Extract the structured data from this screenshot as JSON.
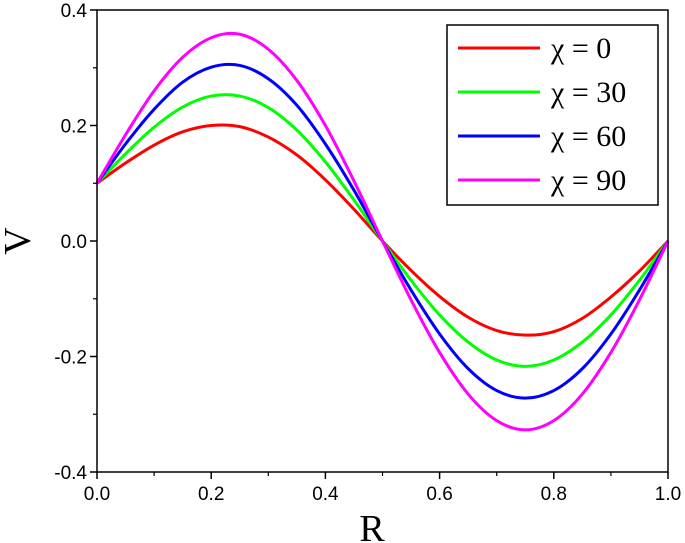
{
  "chart_data": {
    "type": "line",
    "title": "",
    "xlabel": "R",
    "ylabel": "V",
    "xlim": [
      0.0,
      1.0
    ],
    "ylim": [
      -0.4,
      0.4
    ],
    "xticks": [
      "0.0",
      "0.2",
      "0.4",
      "0.6",
      "0.8",
      "1.0"
    ],
    "yticks": [
      "-0.4",
      "-0.2",
      "0.0",
      "0.2",
      "0.4"
    ],
    "grid": false,
    "legend_position": "top-right",
    "x": [
      0,
      0.05,
      0.1,
      0.15,
      0.2,
      0.25,
      0.3,
      0.35,
      0.4,
      0.45,
      0.5,
      0.55,
      0.6,
      0.65,
      0.7,
      0.75,
      0.8,
      0.85,
      0.9,
      0.95,
      1.0
    ],
    "series": [
      {
        "name": "χ = 0",
        "color": "#ff0000",
        "values": [
          0.1,
          0.135,
          0.166,
          0.189,
          0.2,
          0.198,
          0.18,
          0.149,
          0.106,
          0.055,
          0,
          -0.051,
          -0.096,
          -0.132,
          -0.155,
          -0.163,
          -0.157,
          -0.134,
          -0.097,
          -0.052,
          0
        ]
      },
      {
        "name": "χ = 30",
        "color": "#00ff00",
        "values": [
          0.1,
          0.151,
          0.197,
          0.232,
          0.251,
          0.251,
          0.231,
          0.192,
          0.137,
          0.071,
          0,
          -0.068,
          -0.128,
          -0.175,
          -0.206,
          -0.217,
          -0.206,
          -0.175,
          -0.128,
          -0.068,
          0
        ]
      },
      {
        "name": "χ = 60",
        "color": "#0000ff",
        "values": [
          0.1,
          0.168,
          0.228,
          0.275,
          0.301,
          0.304,
          0.281,
          0.235,
          0.168,
          0.088,
          0,
          -0.085,
          -0.161,
          -0.221,
          -0.259,
          -0.272,
          -0.259,
          -0.221,
          -0.161,
          -0.085,
          0
        ]
      },
      {
        "name": "χ = 90",
        "color": "#ff00ff",
        "values": [
          0.1,
          0.184,
          0.26,
          0.318,
          0.352,
          0.358,
          0.332,
          0.278,
          0.2,
          0.104,
          0,
          -0.102,
          -0.193,
          -0.265,
          -0.311,
          -0.327,
          -0.311,
          -0.265,
          -0.193,
          -0.102,
          0
        ]
      }
    ]
  }
}
